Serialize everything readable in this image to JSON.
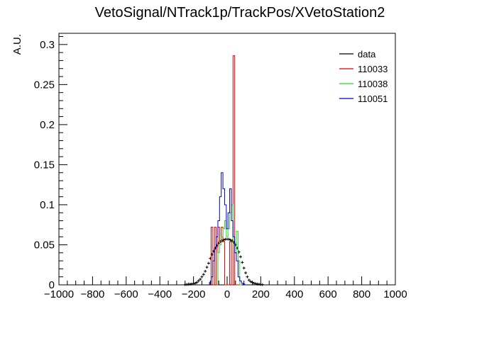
{
  "chart_data": {
    "type": "histogram",
    "title": "VetoSignal/NTrack1p/TrackPos/XVetoStation2",
    "xlabel": "",
    "ylabel": "A.U.",
    "xlim": [
      -1000,
      1000
    ],
    "ylim": [
      0,
      0.314
    ],
    "x_ticks": [
      -1000,
      -800,
      -600,
      -400,
      -200,
      0,
      200,
      400,
      600,
      800,
      1000
    ],
    "x_tick_labels": [
      "−1000",
      "−800",
      "−600",
      "−400",
      "−200",
      "0",
      "200",
      "400",
      "600",
      "800",
      "1000"
    ],
    "y_ticks": [
      0,
      0.05,
      0.1,
      0.15,
      0.2,
      0.25,
      0.3
    ],
    "y_tick_labels": [
      "0",
      "0.05",
      "0.1",
      "0.15",
      "0.2",
      "0.25",
      "0.3"
    ],
    "grid": false,
    "legend_position": "top-right",
    "series": [
      {
        "name": "data",
        "style": "markers",
        "color": "#000000",
        "x": [
          -250,
          -240,
          -230,
          -220,
          -210,
          -200,
          -190,
          -180,
          -170,
          -160,
          -150,
          -140,
          -130,
          -120,
          -110,
          -100,
          -90,
          -80,
          -70,
          -60,
          -50,
          -40,
          -30,
          -20,
          -10,
          0,
          10,
          20,
          30,
          40,
          50,
          60,
          70,
          80,
          90,
          100,
          110,
          120,
          130,
          140,
          150,
          160,
          170,
          180,
          190,
          200,
          210
        ],
        "y": [
          0.0003,
          0.0005,
          0.0008,
          0.001,
          0.0012,
          0.0015,
          0.002,
          0.003,
          0.005,
          0.007,
          0.01,
          0.013,
          0.017,
          0.022,
          0.027,
          0.033,
          0.038,
          0.042,
          0.046,
          0.049,
          0.052,
          0.054,
          0.055,
          0.056,
          0.057,
          0.057,
          0.057,
          0.056,
          0.055,
          0.053,
          0.05,
          0.046,
          0.041,
          0.035,
          0.028,
          0.021,
          0.015,
          0.01,
          0.006,
          0.004,
          0.003,
          0.002,
          0.0015,
          0.001,
          0.0008,
          0.0005,
          0.0003
        ]
      },
      {
        "name": "110033",
        "style": "step",
        "color": "#dd0000",
        "bin_width": 10,
        "x": [
          -90,
          -80,
          -70,
          -60,
          -50,
          -40,
          -30,
          -20,
          -10,
          0,
          10,
          20,
          30,
          40,
          50,
          60,
          70
        ],
        "y": [
          0.072,
          0,
          0.072,
          0.0,
          0.072,
          0.054,
          0.072,
          0.054,
          0.0,
          0.0,
          0.0,
          0.054,
          0.0,
          0.286,
          0.0,
          0.0,
          0.0
        ]
      },
      {
        "name": "110038",
        "style": "step",
        "color": "#22dd22",
        "bin_width": 10,
        "x": [
          -50,
          -40,
          -30,
          -20,
          -10,
          0,
          10,
          20,
          30,
          40,
          50,
          60,
          70,
          80
        ],
        "y": [
          0.04,
          0.05,
          0.06,
          0.07,
          0.08,
          0.06,
          0.07,
          0.09,
          0.1,
          0.05,
          0.04,
          0.067,
          0.03,
          0.0
        ]
      },
      {
        "name": "110051",
        "style": "step",
        "color": "#0000cc",
        "bin_width": 10,
        "x": [
          -100,
          -90,
          -80,
          -70,
          -60,
          -50,
          -40,
          -30,
          -20,
          -10,
          0,
          10,
          20,
          30,
          40,
          50,
          60,
          70,
          80,
          90,
          100,
          110
        ],
        "y": [
          0.003,
          0.01,
          0.03,
          0.045,
          0.06,
          0.08,
          0.11,
          0.14,
          0.12,
          0.1,
          0.07,
          0.09,
          0.12,
          0.08,
          0.06,
          0.04,
          0.03,
          0.01,
          0.005,
          0.002,
          0.001,
          0.0
        ]
      }
    ]
  }
}
